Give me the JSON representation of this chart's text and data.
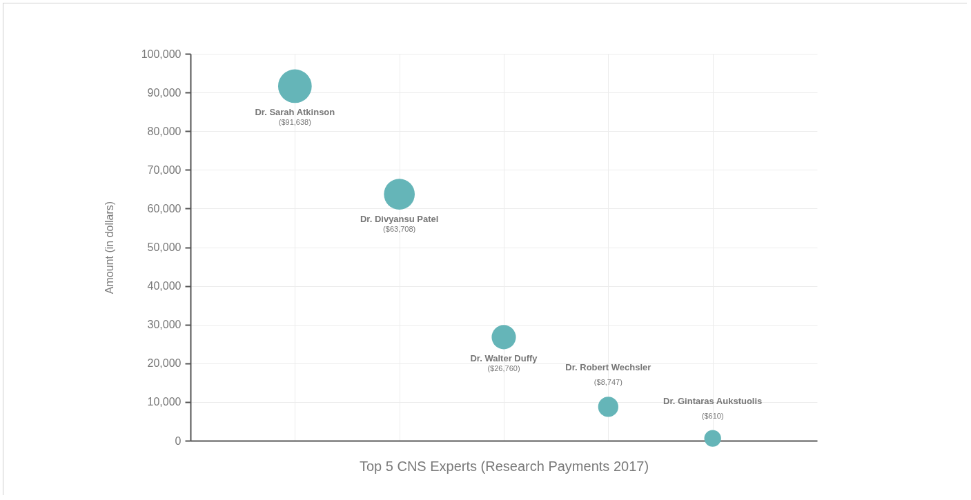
{
  "chart_data": {
    "type": "bubble",
    "xlabel": "Top 5 CNS Experts (Research Payments 2017)",
    "ylabel": "Amount (in dollars)",
    "categories": [
      "Dr. Sarah Atkinson",
      "Dr. Divyansu Patel",
      "Dr. Walter Duffy",
      "Dr. Robert Wechsler",
      "Dr. Gintaras Aukstuolis"
    ],
    "values": [
      91638,
      63708,
      26760,
      8747,
      610
    ],
    "sizes": [
      1,
      0.84,
      0.52,
      0.36,
      0.25
    ],
    "value_labels": [
      "($91,638)",
      "($63,708)",
      "($26,760)",
      "($8,747)",
      "($610)"
    ],
    "color": "#65b5b8",
    "ylim": [
      0,
      100000
    ],
    "yticks": [
      {
        "value": 0,
        "label": "0"
      },
      {
        "value": 10000,
        "label": "10,000"
      },
      {
        "value": 20000,
        "label": "20,000"
      },
      {
        "value": 30000,
        "label": "30,000"
      },
      {
        "value": 40000,
        "label": "40,000"
      },
      {
        "value": 50000,
        "label": "50,000"
      },
      {
        "value": 60000,
        "label": "60,000"
      },
      {
        "value": 70000,
        "label": "70,000"
      },
      {
        "value": 80000,
        "label": "80,000"
      },
      {
        "value": 90000,
        "label": "90,000"
      },
      {
        "value": 100000,
        "label": "100,000"
      }
    ],
    "grid": true,
    "tick_labels": "y"
  }
}
